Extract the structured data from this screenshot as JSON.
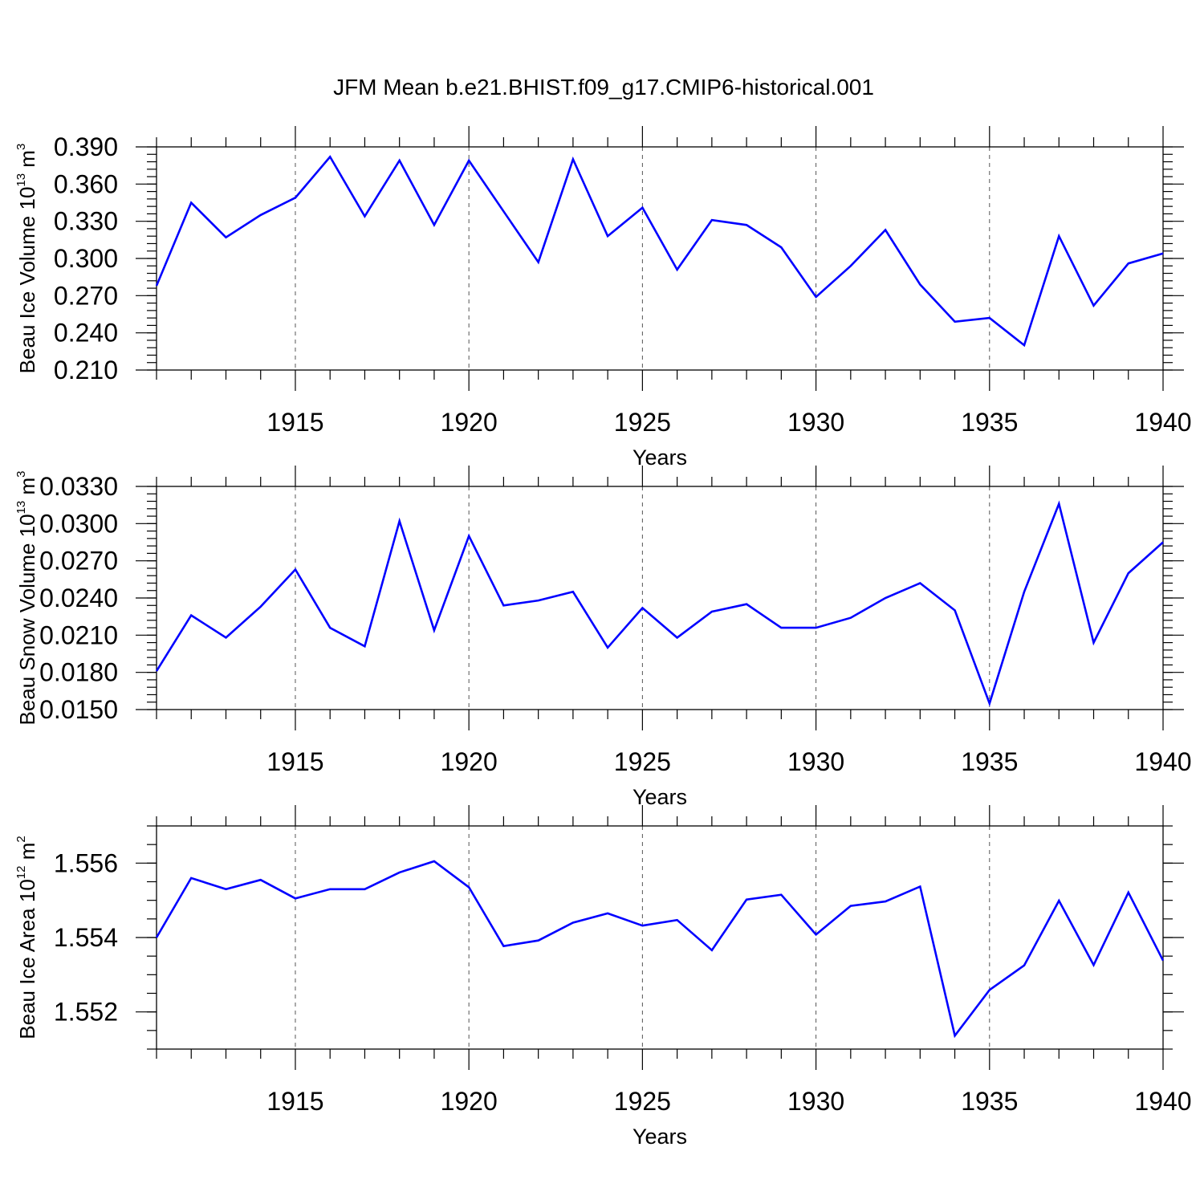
{
  "colors": {
    "line": "#0000ff",
    "frame": "#000000",
    "grid": "#555555",
    "background": "#ffffff"
  },
  "chart_data": {
    "type": "line",
    "title": "JFM Mean b.e21.BHIST.f09_g17.CMIP6-historical.001",
    "panels": [
      {
        "name": "ice-volume",
        "ylabel": {
          "main": "Beau Ice Volume 10",
          "exp": "13",
          "unit": " m",
          "unit_exp": "3"
        },
        "xlabel": "Years",
        "xlim": [
          1911,
          1940
        ],
        "ylim": [
          0.21,
          0.39
        ],
        "yticks": [
          0.21,
          0.24,
          0.27,
          0.3,
          0.33,
          0.36,
          0.39
        ],
        "ytick_labels": [
          "0.210",
          "0.240",
          "0.270",
          "0.300",
          "0.330",
          "0.360",
          "0.390"
        ],
        "yminor": 0.006,
        "xticks": [
          1915,
          1920,
          1925,
          1930,
          1935,
          1940
        ],
        "xtick_labels": [
          "1915",
          "1920",
          "1925",
          "1930",
          "1935",
          "1940"
        ],
        "x": [
          1911,
          1912,
          1913,
          1914,
          1915,
          1916,
          1917,
          1918,
          1919,
          1920,
          1921,
          1922,
          1923,
          1924,
          1925,
          1926,
          1927,
          1928,
          1929,
          1930,
          1931,
          1932,
          1933,
          1934,
          1935,
          1936,
          1937,
          1938,
          1939,
          1940
        ],
        "values": [
          0.278,
          0.345,
          0.317,
          0.335,
          0.349,
          0.382,
          0.334,
          0.379,
          0.327,
          0.379,
          0.338,
          0.297,
          0.38,
          0.318,
          0.341,
          0.291,
          0.331,
          0.327,
          0.309,
          0.269,
          0.294,
          0.323,
          0.279,
          0.249,
          0.252,
          0.23,
          0.318,
          0.262,
          0.296,
          0.304
        ]
      },
      {
        "name": "snow-volume",
        "ylabel": {
          "main": "Beau Snow Volume 10",
          "exp": "13",
          "unit": " m",
          "unit_exp": "3"
        },
        "xlabel": "Years",
        "xlim": [
          1911,
          1940
        ],
        "ylim": [
          0.015,
          0.033
        ],
        "yticks": [
          0.015,
          0.018,
          0.021,
          0.024,
          0.027,
          0.03,
          0.033
        ],
        "ytick_labels": [
          "0.0150",
          "0.0180",
          "0.0210",
          "0.0240",
          "0.0270",
          "0.0300",
          "0.0330"
        ],
        "yminor": 0.0006,
        "xticks": [
          1915,
          1920,
          1925,
          1930,
          1935,
          1940
        ],
        "xtick_labels": [
          "1915",
          "1920",
          "1925",
          "1930",
          "1935",
          "1940"
        ],
        "x": [
          1911,
          1912,
          1913,
          1914,
          1915,
          1916,
          1917,
          1918,
          1919,
          1920,
          1921,
          1922,
          1923,
          1924,
          1925,
          1926,
          1927,
          1928,
          1929,
          1930,
          1931,
          1932,
          1933,
          1934,
          1935,
          1936,
          1937,
          1938,
          1939,
          1940
        ],
        "values": [
          0.0181,
          0.0226,
          0.0208,
          0.0233,
          0.0263,
          0.0216,
          0.0201,
          0.0302,
          0.0214,
          0.029,
          0.0234,
          0.0238,
          0.0245,
          0.02,
          0.0232,
          0.0208,
          0.0229,
          0.0235,
          0.0216,
          0.0216,
          0.0224,
          0.024,
          0.0252,
          0.023,
          0.0155,
          0.0245,
          0.0316,
          0.0204,
          0.026,
          0.0285
        ]
      },
      {
        "name": "ice-area",
        "ylabel": {
          "main": "Beau Ice Area 10",
          "exp": "12",
          "unit": " m",
          "unit_exp": "2"
        },
        "xlabel": "Years",
        "xlim": [
          1911,
          1940
        ],
        "ylim": [
          1.551,
          1.557
        ],
        "yticks": [
          1.552,
          1.554,
          1.556
        ],
        "ytick_labels": [
          "1.552",
          "1.554",
          "1.556"
        ],
        "yminor": 0.0005,
        "xticks": [
          1915,
          1920,
          1925,
          1930,
          1935,
          1940
        ],
        "xtick_labels": [
          "1915",
          "1920",
          "1925",
          "1930",
          "1935",
          "1940"
        ],
        "x": [
          1911,
          1912,
          1913,
          1914,
          1915,
          1916,
          1917,
          1918,
          1919,
          1920,
          1921,
          1922,
          1923,
          1924,
          1925,
          1926,
          1927,
          1928,
          1929,
          1930,
          1931,
          1932,
          1933,
          1934,
          1935,
          1936,
          1937,
          1938,
          1939,
          1940
        ],
        "values": [
          1.554,
          1.5556,
          1.5553,
          1.55555,
          1.55505,
          1.5553,
          1.5553,
          1.55575,
          1.55605,
          1.55535,
          1.55377,
          1.55392,
          1.5544,
          1.55465,
          1.55432,
          1.55447,
          1.55366,
          1.55502,
          1.55515,
          1.55408,
          1.55485,
          1.55497,
          1.55537,
          1.55136,
          1.55259,
          1.55325,
          1.55499,
          1.55326,
          1.55521,
          1.55338
        ]
      }
    ]
  }
}
